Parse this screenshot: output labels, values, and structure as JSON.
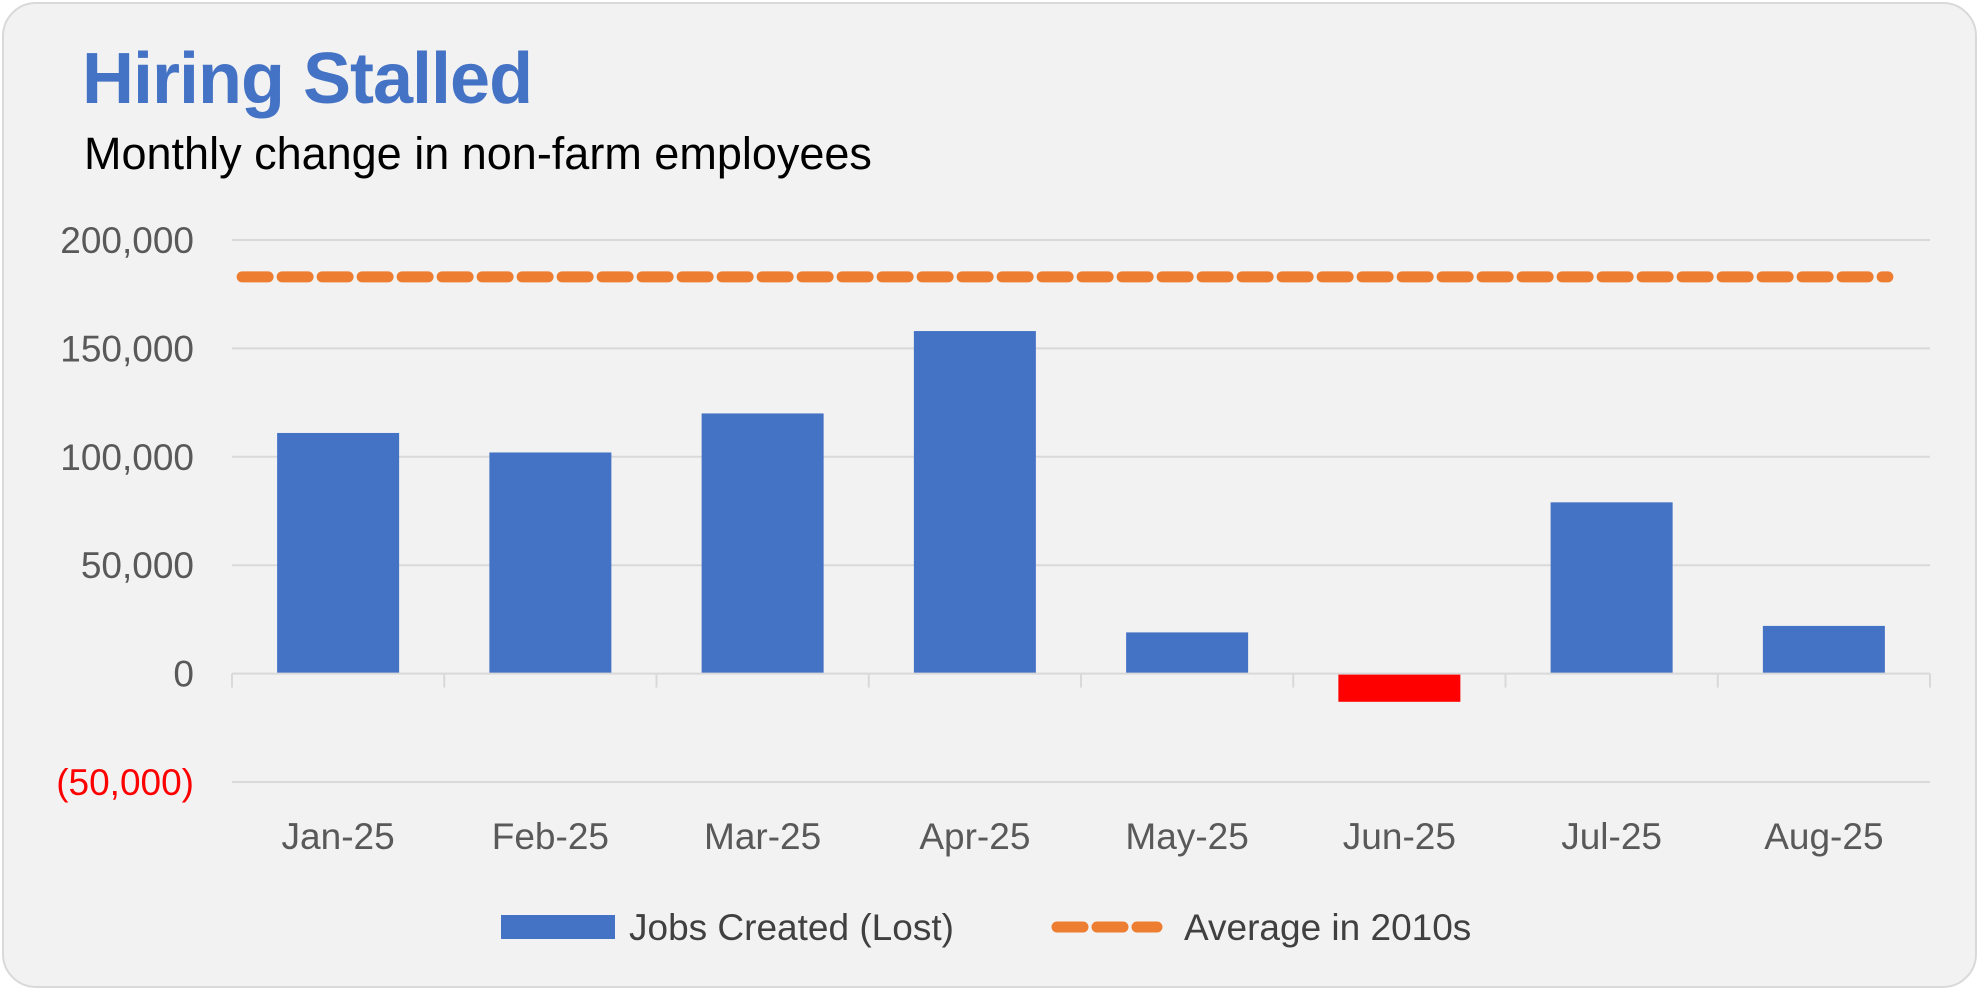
{
  "header": {
    "title": "Hiring Stalled",
    "subtitle": "Monthly change in non-farm employees"
  },
  "chart_data": {
    "type": "bar",
    "title": "Hiring Stalled",
    "subtitle": "Monthly change in non-farm employees",
    "categories": [
      "Jan-25",
      "Feb-25",
      "Mar-25",
      "Apr-25",
      "May-25",
      "Jun-25",
      "Jul-25",
      "Aug-25"
    ],
    "series": [
      {
        "name": "Jobs Created (Lost)",
        "type": "bar",
        "values": [
          111000,
          102000,
          120000,
          158000,
          19000,
          -13000,
          79000,
          22000
        ],
        "color": "#4472c4",
        "negative_color": "#ff0000"
      },
      {
        "name": "Average in 2010s",
        "type": "line",
        "style": "dashed",
        "values": [
          183000,
          183000,
          183000,
          183000,
          183000,
          183000,
          183000,
          183000
        ],
        "color": "#ed7d31"
      }
    ],
    "y_ticks": [
      {
        "value": 200000,
        "label": "200,000"
      },
      {
        "value": 150000,
        "label": "150,000"
      },
      {
        "value": 100000,
        "label": "100,000"
      },
      {
        "value": 50000,
        "label": "50,000"
      },
      {
        "value": 0,
        "label": "0"
      },
      {
        "value": -50000,
        "label": "(50,000)"
      }
    ],
    "ylim": [
      -50000,
      200000
    ],
    "xlabel": "",
    "ylabel": "",
    "grid": true,
    "legend": "bottom",
    "colors": {
      "gridline": "#d9d9d9",
      "tick_text": "#595959",
      "negative_text": "#ff0000"
    }
  }
}
